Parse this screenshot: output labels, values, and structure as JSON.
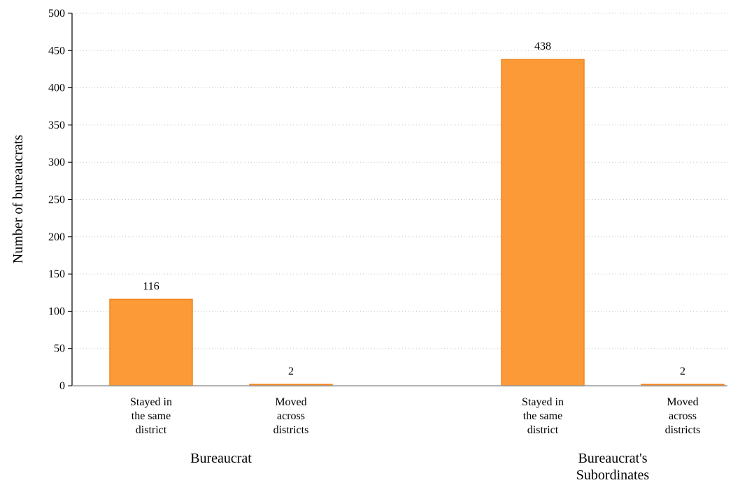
{
  "chart_data": {
    "type": "bar",
    "ylabel": "Number of bureaucrats",
    "ylim": [
      0,
      500
    ],
    "yticks": [
      0,
      50,
      100,
      150,
      200,
      250,
      300,
      350,
      400,
      450,
      500
    ],
    "grid": true,
    "bar_color": "#fd9a38",
    "bar_edge_color": "#f2841f",
    "groups": [
      {
        "label": "Bureaucrat",
        "bars": [
          {
            "category": "Stayed in the same district",
            "label_lines": [
              "Stayed in",
              "the same",
              "district"
            ],
            "value": 116
          },
          {
            "category": "Moved across districts",
            "label_lines": [
              "Moved",
              "across",
              "districts"
            ],
            "value": 2
          }
        ]
      },
      {
        "label": "Bureaucrat's Subordinates",
        "label_lines": [
          "Bureaucrat's",
          "Subordinates"
        ],
        "bars": [
          {
            "category": "Stayed in the same district",
            "label_lines": [
              "Stayed in",
              "the same",
              "district"
            ],
            "value": 438
          },
          {
            "category": "Moved across districts",
            "label_lines": [
              "Moved",
              "across",
              "districts"
            ],
            "value": 2
          }
        ]
      }
    ]
  }
}
